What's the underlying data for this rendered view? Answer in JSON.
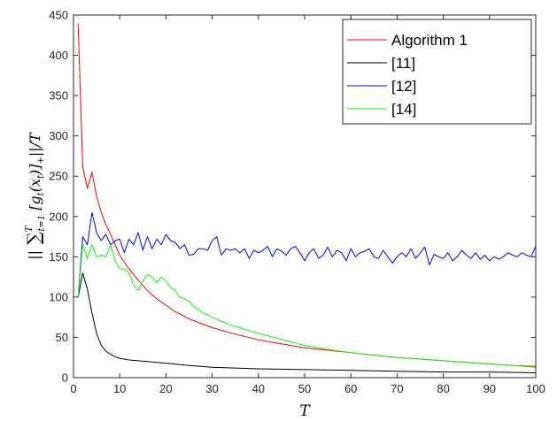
{
  "chart_data": {
    "type": "line",
    "title": "",
    "xlabel": "T",
    "ylabel": "|| ∑ₜ₌₁ᵀ [gₜ(xₜ)]₊ || / T",
    "xlim": [
      0,
      100
    ],
    "ylim": [
      0,
      450
    ],
    "xticks": [
      0,
      10,
      20,
      30,
      40,
      50,
      60,
      70,
      80,
      90,
      100
    ],
    "yticks": [
      0,
      50,
      100,
      150,
      200,
      250,
      300,
      350,
      400,
      450
    ],
    "grid": false,
    "legend_position": "top-right",
    "series": [
      {
        "name": "Algorithm 1",
        "color": "#ff0000",
        "x": [
          1,
          2,
          3,
          4,
          5,
          6,
          7,
          8,
          9,
          10,
          12,
          14,
          16,
          18,
          20,
          22,
          25,
          30,
          35,
          40,
          45,
          50,
          55,
          60,
          65,
          70,
          75,
          80,
          85,
          90,
          95,
          100
        ],
        "y": [
          440,
          262,
          235,
          255,
          225,
          205,
          190,
          178,
          165,
          152,
          135,
          121,
          108,
          98,
          90,
          82,
          73,
          62,
          54,
          47,
          42,
          37,
          34,
          31,
          28,
          25,
          23,
          21,
          19,
          17,
          15,
          14
        ]
      },
      {
        "name": "[11]",
        "color": "#000000",
        "x": [
          1,
          2,
          3,
          4,
          5,
          6,
          7,
          8,
          9,
          10,
          12,
          14,
          16,
          18,
          20,
          25,
          30,
          40,
          50,
          60,
          70,
          80,
          90,
          100
        ],
        "y": [
          100,
          130,
          110,
          80,
          55,
          40,
          33,
          29,
          26,
          24,
          22,
          21,
          20,
          19,
          18,
          15,
          13,
          11,
          10,
          9,
          8,
          7,
          7,
          6
        ]
      },
      {
        "name": "[12]",
        "color": "#0000ff",
        "x": [
          1,
          2,
          3,
          4,
          5,
          6,
          7,
          8,
          9,
          10,
          11,
          12,
          13,
          14,
          15,
          16,
          17,
          18,
          19,
          20,
          21,
          22,
          23,
          24,
          25,
          26,
          27,
          28,
          29,
          30,
          31,
          32,
          33,
          34,
          35,
          36,
          37,
          38,
          39,
          40,
          41,
          42,
          43,
          44,
          45,
          46,
          47,
          48,
          49,
          50,
          51,
          52,
          53,
          54,
          55,
          56,
          57,
          58,
          59,
          60,
          61,
          62,
          63,
          64,
          65,
          66,
          67,
          68,
          69,
          70,
          71,
          72,
          73,
          74,
          75,
          76,
          77,
          78,
          79,
          80,
          81,
          82,
          83,
          84,
          85,
          86,
          87,
          88,
          89,
          90,
          91,
          92,
          93,
          94,
          95,
          96,
          97,
          98,
          99,
          100
        ],
        "y": [
          100,
          175,
          165,
          205,
          180,
          170,
          178,
          165,
          170,
          172,
          155,
          172,
          165,
          180,
          158,
          175,
          160,
          172,
          165,
          178,
          170,
          168,
          160,
          165,
          152,
          153,
          160,
          160,
          158,
          170,
          175,
          152,
          160,
          158,
          160,
          155,
          160,
          148,
          158,
          155,
          158,
          163,
          150,
          160,
          157,
          152,
          160,
          163,
          155,
          145,
          155,
          160,
          148,
          152,
          162,
          150,
          158,
          155,
          145,
          160,
          150,
          155,
          157,
          160,
          150,
          148,
          158,
          150,
          142,
          150,
          155,
          150,
          160,
          148,
          155,
          162,
          140,
          153,
          150,
          148,
          155,
          145,
          150,
          158,
          152,
          148,
          155,
          147,
          152,
          145,
          150,
          147,
          150,
          155,
          152,
          150,
          155,
          152,
          150,
          163
        ]
      },
      {
        "name": "[14]",
        "color": "#00ff00",
        "x": [
          1,
          2,
          3,
          4,
          5,
          6,
          7,
          8,
          9,
          10,
          11,
          12,
          13,
          14,
          15,
          16,
          17,
          18,
          19,
          20,
          21,
          22,
          23,
          24,
          25,
          26,
          27,
          28,
          29,
          30,
          32,
          34,
          36,
          38,
          40,
          42,
          44,
          46,
          48,
          50,
          55,
          60,
          65,
          70,
          75,
          80,
          85,
          90,
          95,
          100
        ],
        "y": [
          100,
          165,
          148,
          165,
          150,
          152,
          150,
          165,
          145,
          135,
          135,
          130,
          115,
          108,
          120,
          128,
          125,
          118,
          125,
          120,
          112,
          108,
          100,
          98,
          95,
          88,
          85,
          80,
          78,
          75,
          70,
          65,
          62,
          58,
          55,
          52,
          49,
          46,
          43,
          40,
          35,
          31,
          28,
          25,
          23,
          21,
          19,
          17,
          15,
          13
        ]
      }
    ]
  }
}
